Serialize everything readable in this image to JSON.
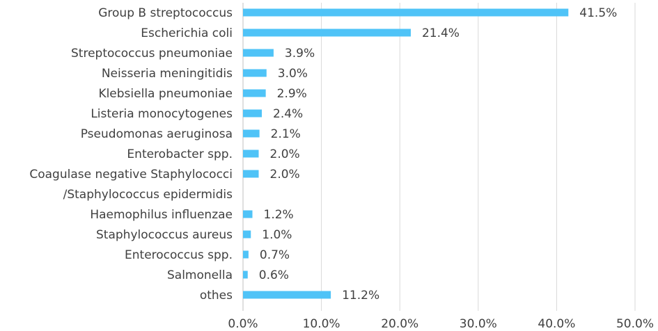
{
  "chart_data": {
    "type": "bar",
    "orientation": "horizontal",
    "title": "",
    "xlabel": "",
    "ylabel": "",
    "categories": [
      [
        "Group B streptococcus"
      ],
      [
        "Escherichia coli"
      ],
      [
        "Streptococcus pneumoniae"
      ],
      [
        "Neisseria meningitidis"
      ],
      [
        "Klebsiella pneumoniae"
      ],
      [
        "Listeria monocytogenes"
      ],
      [
        "Pseudomonas aeruginosa"
      ],
      [
        "Enterobacter spp."
      ],
      [
        "Coagulase negative Staphylococci",
        "/Staphylococcus epidermidis"
      ],
      [
        "Haemophilus influenzae"
      ],
      [
        "Staphylococcus aureus"
      ],
      [
        "Enterococcus spp."
      ],
      [
        "Salmonella"
      ],
      [
        "othes"
      ]
    ],
    "values": [
      41.5,
      21.4,
      3.9,
      3.0,
      2.9,
      2.4,
      2.1,
      2.0,
      2.0,
      1.2,
      1.0,
      0.7,
      0.6,
      11.2
    ],
    "value_labels": [
      "41.5%",
      "21.4%",
      "3.9%",
      "3.0%",
      "2.9%",
      "2.4%",
      "2.1%",
      "2.0%",
      "2.0%",
      "1.2%",
      "1.0%",
      "0.7%",
      "0.6%",
      "11.2%"
    ],
    "xlim": [
      0,
      50
    ],
    "xticks": [
      0,
      10,
      20,
      30,
      40,
      50
    ],
    "xtick_labels": [
      "0.0%",
      "10.0%",
      "20.0%",
      "30.0%",
      "40.0%",
      "50.0%"
    ],
    "grid": "vertical",
    "legend": "none",
    "colors": {
      "bar": "#4fc3f7",
      "grid": "#d9d9d9",
      "text": "#404040"
    }
  }
}
